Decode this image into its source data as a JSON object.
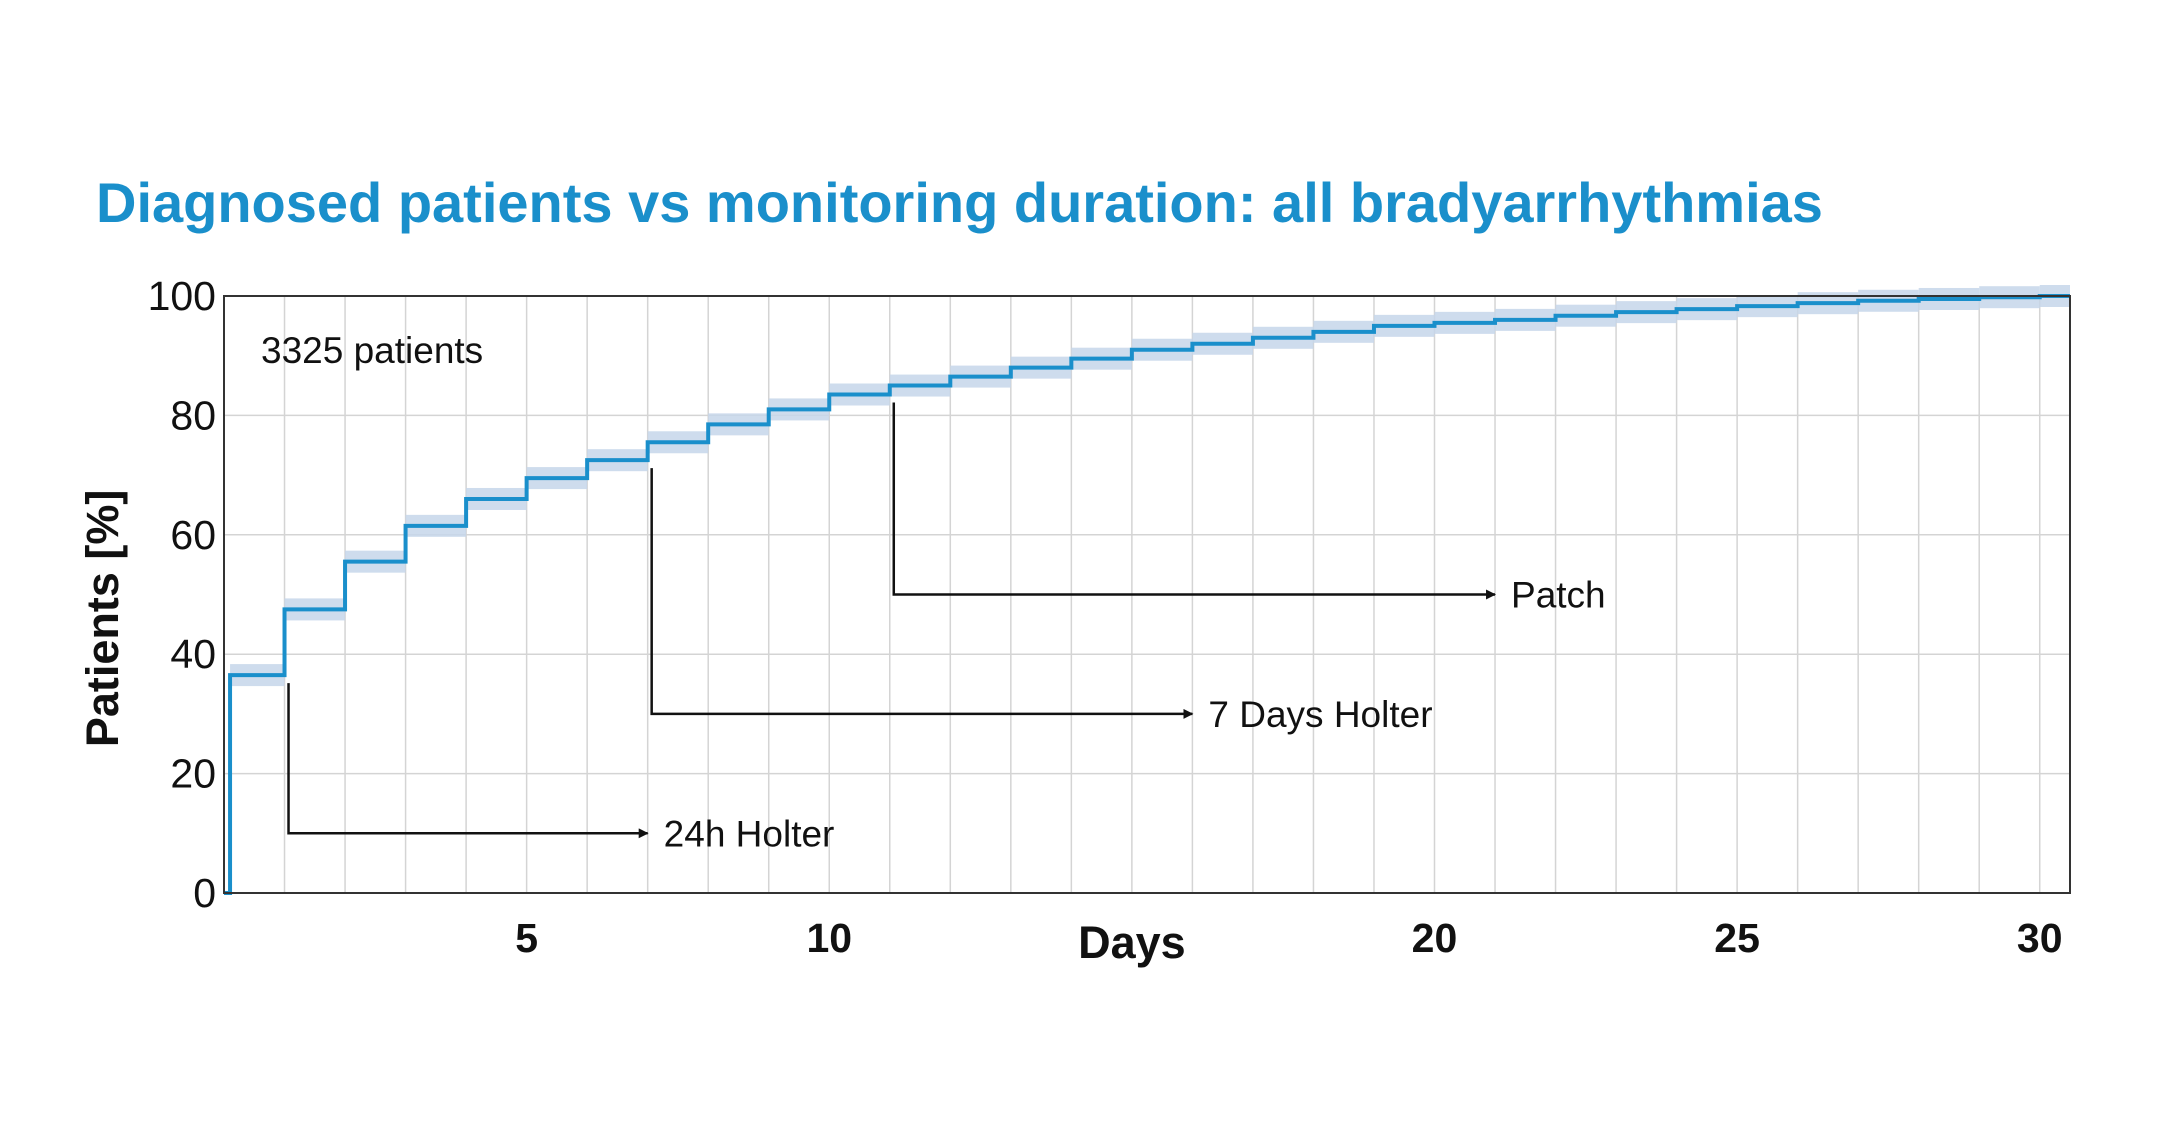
{
  "chart_data": {
    "type": "line",
    "title": "Diagnosed patients vs monitoring duration: all bradyarrhythmias",
    "xlabel": "Days",
    "ylabel": "Patients [%]",
    "xlim": [
      0,
      30.5
    ],
    "ylim": [
      0,
      100
    ],
    "xticks": [
      5,
      10,
      20,
      25,
      30
    ],
    "yticks": [
      0,
      20,
      40,
      60,
      80,
      100
    ],
    "grid": true,
    "line_color": "#1a8fcb",
    "band_color": "#c5d6ea",
    "title_color": "#1a8fcb",
    "series": [
      {
        "x": [
          0,
          0.1,
          0.1,
          1,
          2,
          3,
          4,
          5,
          6,
          7,
          8,
          9,
          10,
          11,
          12,
          13,
          14,
          15,
          16,
          17,
          18,
          19,
          20,
          21,
          22,
          23,
          24,
          25,
          26,
          27,
          28,
          29,
          30,
          30.5
        ],
        "y": [
          0,
          0,
          36.5,
          47.5,
          55.5,
          61.5,
          66,
          69.5,
          72.5,
          75.5,
          78.5,
          81,
          83.5,
          85,
          86.5,
          88,
          89.5,
          91,
          92,
          93,
          94,
          95,
          95.5,
          96,
          96.7,
          97.3,
          97.8,
          98.3,
          98.8,
          99.2,
          99.5,
          99.8,
          100,
          100
        ]
      }
    ],
    "annotations": [
      {
        "label": "3325 patients"
      },
      {
        "label": "24h Holter",
        "day": 1,
        "value": 36.5,
        "line_value": 10,
        "arrow_to_day": 7
      },
      {
        "label": "7 Days Holter",
        "day": 7,
        "value": 72.5,
        "line_value": 30,
        "arrow_to_day": 16
      },
      {
        "label": "Patch",
        "day": 11,
        "value": 83.5,
        "line_value": 50,
        "arrow_to_day": 21
      }
    ]
  }
}
